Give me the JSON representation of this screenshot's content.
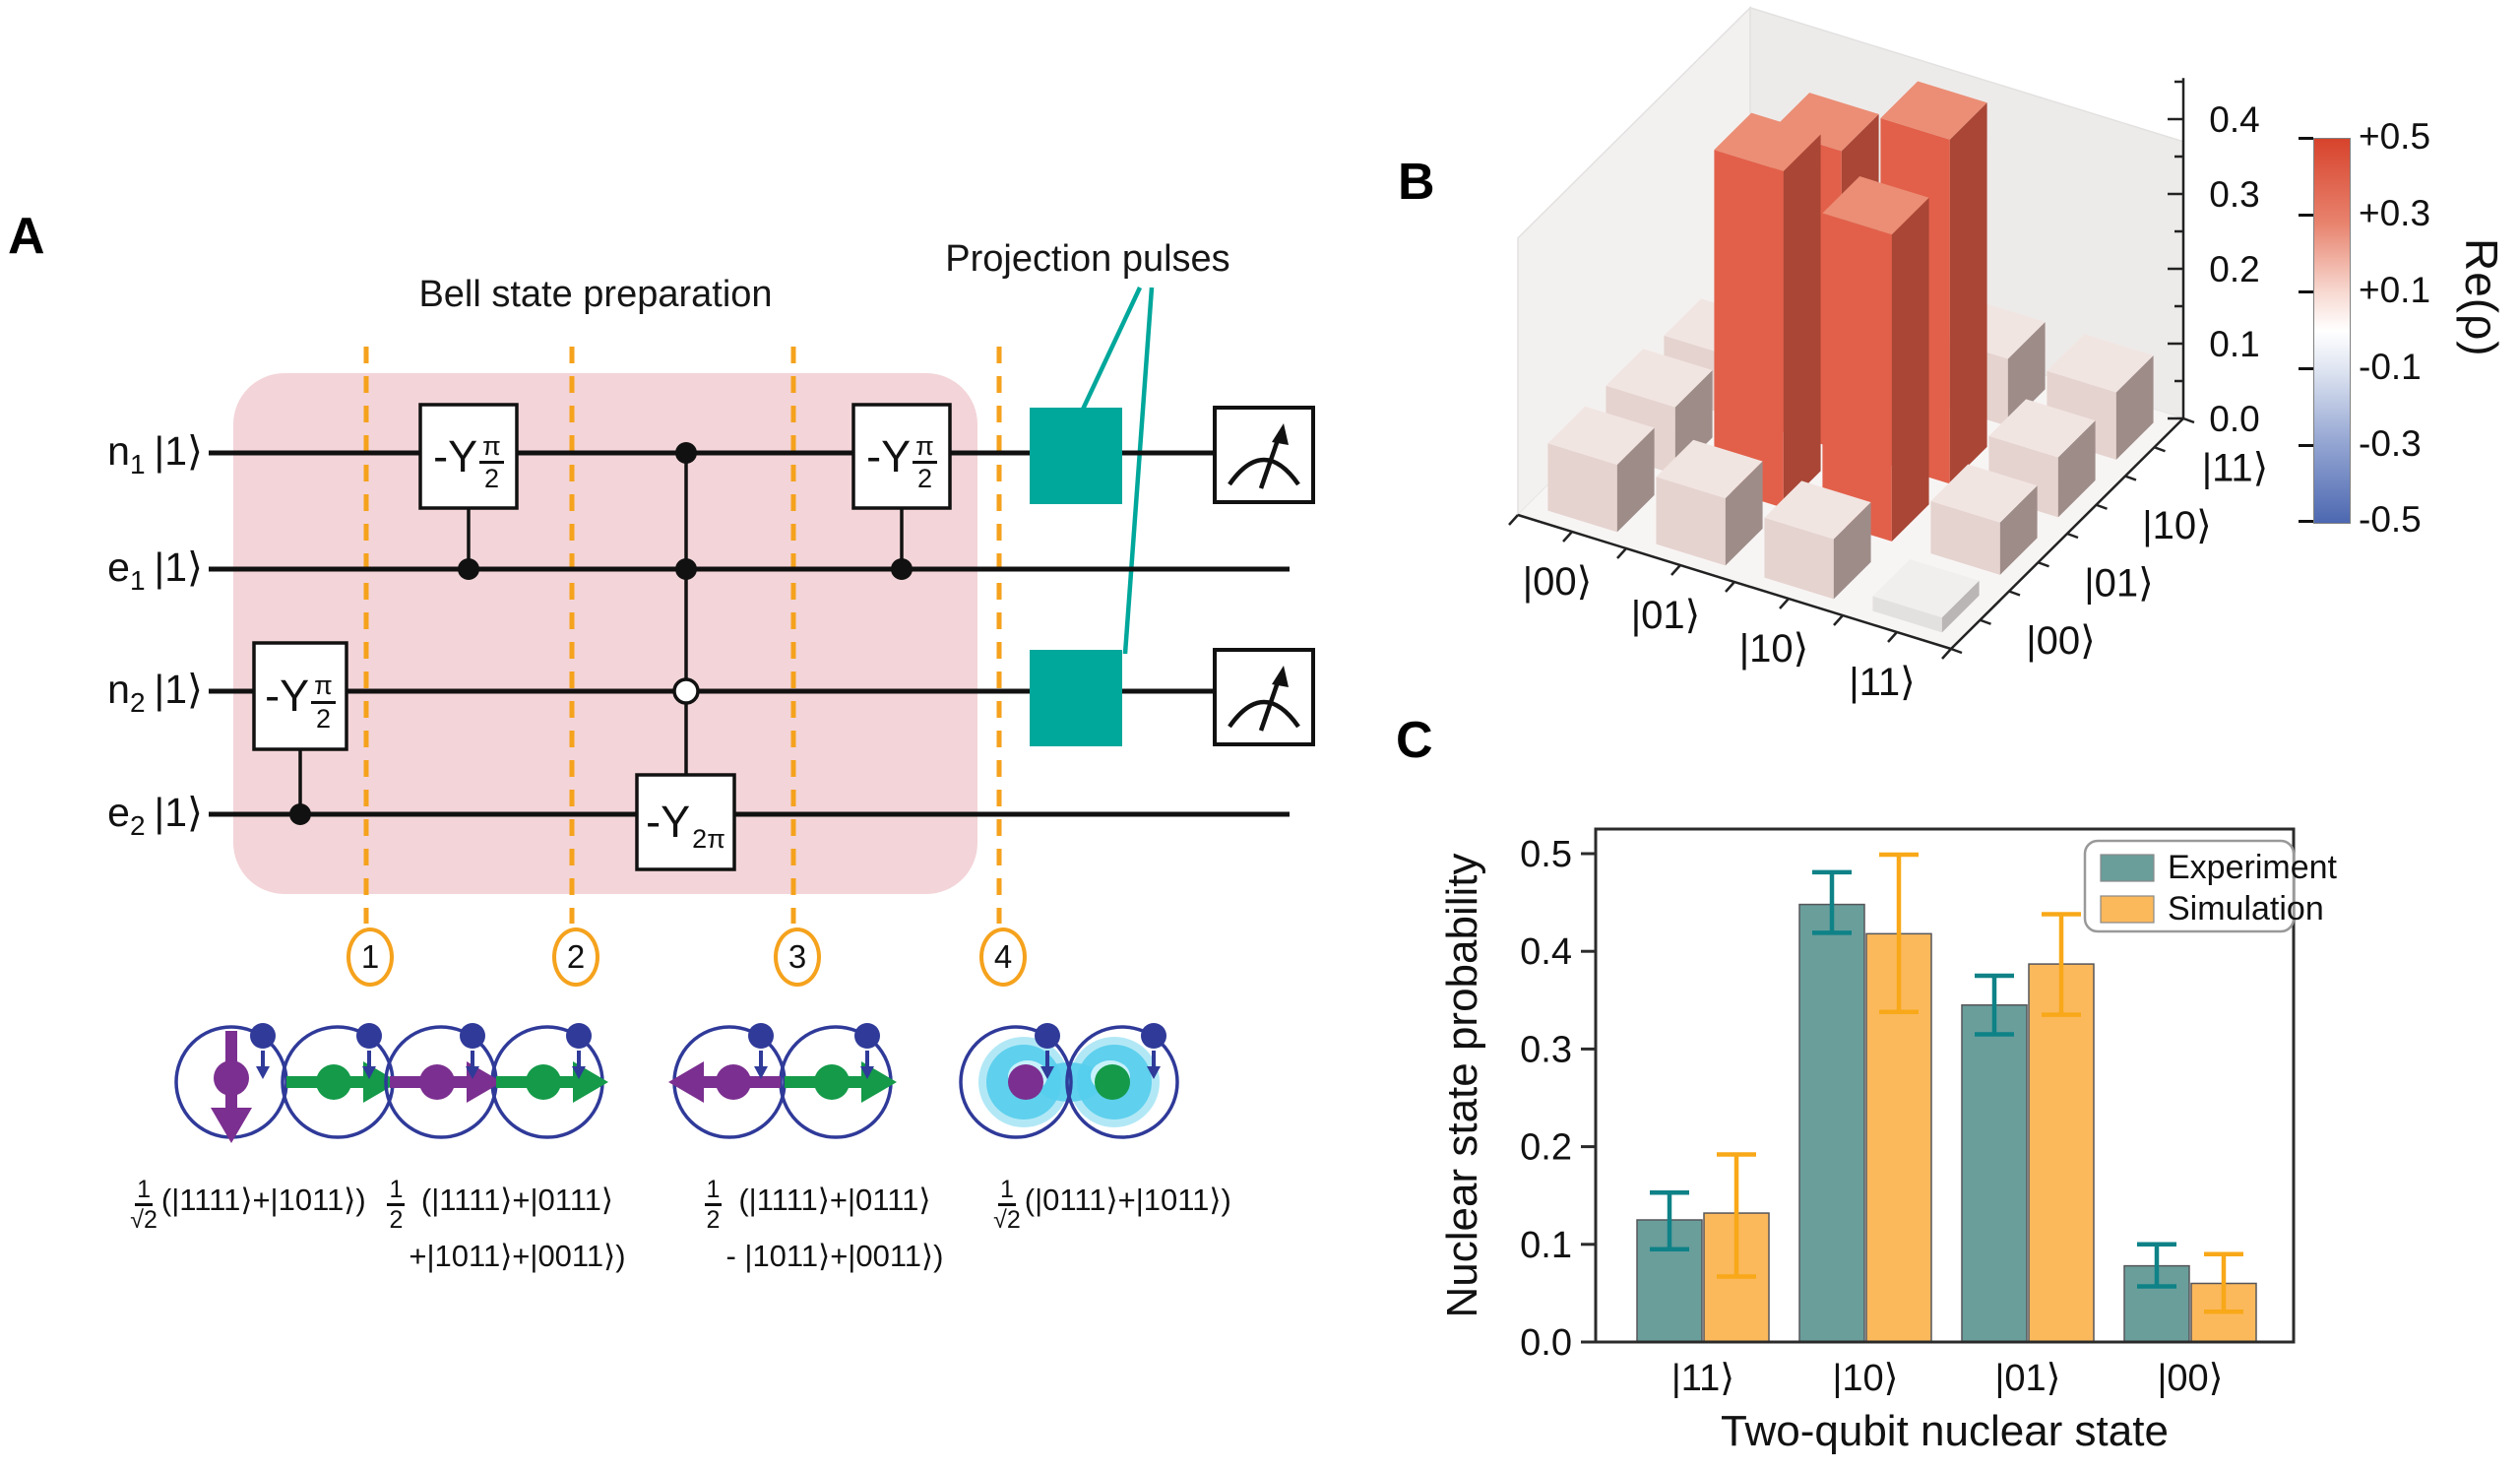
{
  "panelA": {
    "label": "A",
    "title": "Bell state preparation",
    "projection_label": "Projection pulses",
    "wires": [
      {
        "base": "n",
        "sub": "1",
        "ket": "|1⟩"
      },
      {
        "base": "e",
        "sub": "1",
        "ket": "|1⟩"
      },
      {
        "base": "n",
        "sub": "2",
        "ket": "|1⟩"
      },
      {
        "base": "e",
        "sub": "2",
        "ket": "|1⟩"
      }
    ],
    "gates": {
      "rot_half": {
        "sign": "-Y",
        "num": "π",
        "den": "2"
      },
      "rot_2pi": {
        "sign": "-Y",
        "sub": "2π"
      }
    },
    "steps": [
      "1",
      "2",
      "3",
      "4"
    ],
    "states": [
      {
        "num": "1",
        "den": "√2",
        "line1": "(|1111⟩+|1011⟩)",
        "line2": ""
      },
      {
        "num": "1",
        "den": "2",
        "line1": "(|1111⟩+|0111⟩",
        "line2": "+|1011⟩+|0011⟩)"
      },
      {
        "num": "1",
        "den": "2",
        "line1": "(|1111⟩+|0111⟩",
        "line2": "- |1011⟩+|0011⟩)"
      },
      {
        "num": "1",
        "den": "√2",
        "line1": "(|0111⟩+|1011⟩)",
        "line2": ""
      }
    ],
    "spins": [
      {
        "left": "down",
        "right": "right",
        "entangled": false
      },
      {
        "left": "right",
        "right": "right",
        "entangled": false
      },
      {
        "left": "left",
        "right": "right",
        "entangled": false
      },
      {
        "left": "ball",
        "right": "ball",
        "entangled": true
      }
    ],
    "colors": {
      "pink": "#f3d4d8",
      "orange": "#f5a21d",
      "teal": "#00a79b",
      "purple": "#7b2f90",
      "green": "#149a49",
      "navy": "#2f3a99",
      "glow": "#55cdec"
    }
  },
  "panelB": {
    "label": "B"
  },
  "panelC": {
    "label": "C"
  },
  "chart_data": [
    {
      "type": "heatmap",
      "render_style": "3d-bars",
      "title": "",
      "zlabel": "Re(ρ)",
      "basis": [
        "|00⟩",
        "|01⟩",
        "|10⟩",
        "|11⟩"
      ],
      "matrix": [
        [
          0.09,
          0.09,
          0.08,
          0.07
        ],
        [
          0.09,
          0.45,
          0.4,
          0.08
        ],
        [
          0.08,
          0.41,
          0.46,
          0.09
        ],
        [
          0.02,
          0.07,
          0.08,
          0.09
        ]
      ],
      "zticks": [
        "0.0",
        "0.1",
        "0.2",
        "0.3",
        "0.4"
      ],
      "zlim": [
        0.0,
        0.45
      ],
      "colorbar": {
        "label": "Re(ρ)",
        "ticks": [
          "+0.5",
          "+0.3",
          "+0.1",
          "-0.1",
          "-0.3",
          "-0.5"
        ],
        "max_color": "#d7432c",
        "mid_color": "#ffffff",
        "min_color": "#4d68b1"
      }
    },
    {
      "type": "bar",
      "categories": [
        "|11⟩",
        "|10⟩",
        "|01⟩",
        "|00⟩"
      ],
      "series": [
        {
          "name": "Experiment",
          "color": "#699e9b",
          "error_color": "#0e8287",
          "values": [
            0.125,
            0.448,
            0.345,
            0.078
          ],
          "err_minus": [
            0.03,
            0.029,
            0.03,
            0.021
          ],
          "err_plus": [
            0.028,
            0.033,
            0.03,
            0.022
          ]
        },
        {
          "name": "Simulation",
          "color": "#fbb95c",
          "error_color": "#f8a818",
          "values": [
            0.132,
            0.418,
            0.387,
            0.06
          ],
          "err_minus": [
            0.065,
            0.08,
            0.052,
            0.029
          ],
          "err_plus": [
            0.06,
            0.081,
            0.051,
            0.03
          ]
        }
      ],
      "xlabel": "Two-qubit nuclear state",
      "ylabel": "Nuclear state probability",
      "yticks": [
        "0.0",
        "0.1",
        "0.2",
        "0.3",
        "0.4",
        "0.5"
      ],
      "ylim": [
        0.0,
        0.523
      ],
      "legend_position": "top-right",
      "grid": false
    }
  ]
}
